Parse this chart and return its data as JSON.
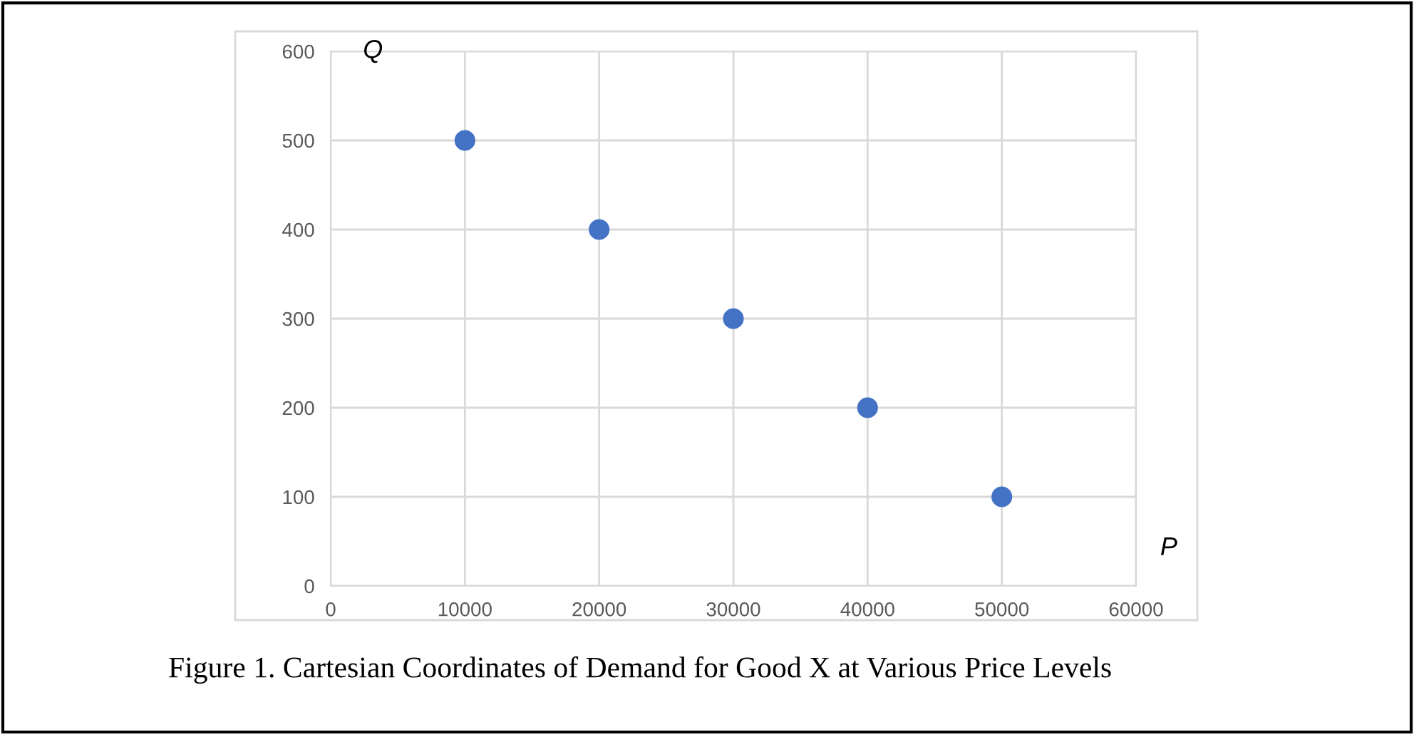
{
  "chart_data": {
    "type": "scatter",
    "xlabel": "P",
    "ylabel": "Q",
    "x": [
      10000,
      20000,
      30000,
      40000,
      50000
    ],
    "series": [
      {
        "color": "#4472c4",
        "values": [
          500,
          400,
          300,
          200,
          100
        ]
      }
    ],
    "xlim": [
      0,
      60000
    ],
    "ylim": [
      0,
      600
    ],
    "xticks": [
      0,
      10000,
      20000,
      30000,
      40000,
      50000,
      60000
    ],
    "yticks": [
      0,
      100,
      200,
      300,
      400,
      500,
      600
    ],
    "grid": true,
    "marker": "circle",
    "legend": false,
    "annotations": [
      "Figure 1. Cartesian Coordinates of Demand for Good X at Various Price Levels"
    ]
  }
}
